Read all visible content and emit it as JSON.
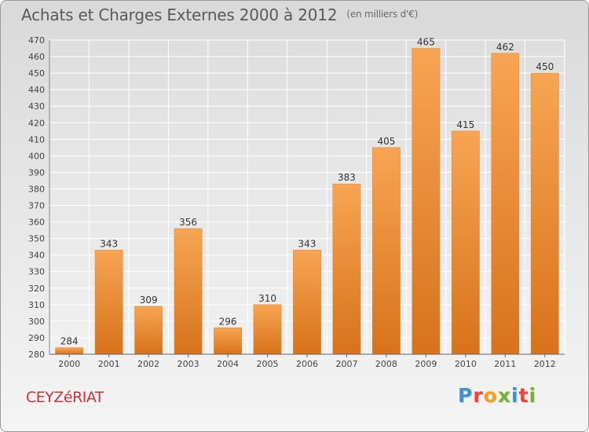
{
  "title": "Achats et Charges Externes 2000 à 2012",
  "unit_note": "(en milliers d'€)",
  "city": "CEYZéRIAT",
  "logo": {
    "text": [
      "P",
      "r",
      "o",
      "x",
      "i",
      "t",
      "i"
    ]
  },
  "colors": {
    "bar_top": "#f7a553",
    "bar_bottom": "#d8721c",
    "grid": "#ffffff",
    "title": "#5a5a5a",
    "city": "#c8333a"
  },
  "chart_data": {
    "type": "bar",
    "categories": [
      "2000",
      "2001",
      "2002",
      "2003",
      "2004",
      "2005",
      "2006",
      "2007",
      "2008",
      "2009",
      "2010",
      "2011",
      "2012"
    ],
    "values": [
      284,
      343,
      309,
      356,
      296,
      310,
      343,
      383,
      405,
      465,
      415,
      462,
      450
    ],
    "ylim": [
      280,
      470
    ],
    "ytick_step": 10,
    "grid": true,
    "data_labels": true
  }
}
